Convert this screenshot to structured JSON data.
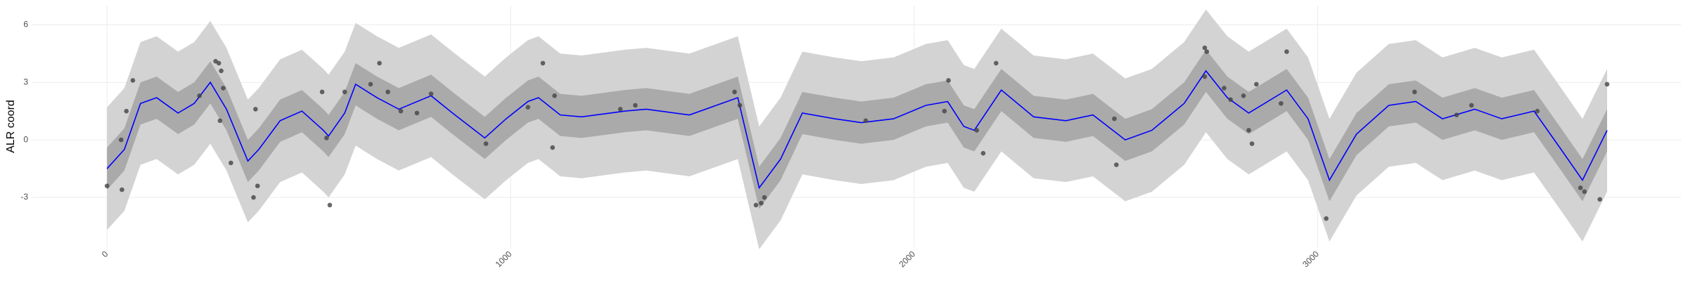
{
  "chart_data": {
    "type": "line",
    "y_label": "ALR coord",
    "xlim": [
      -185,
      3900
    ],
    "ylim": [
      -5.6,
      7
    ],
    "xticks": [
      0,
      1000,
      2000,
      3000
    ],
    "yticks": [
      -3,
      0,
      3,
      6
    ],
    "grid": true,
    "x": [
      0,
      43,
      83,
      123,
      176,
      216,
      256,
      296,
      349,
      376,
      429,
      483,
      536,
      549,
      589,
      616,
      669,
      723,
      803,
      856,
      936,
      989,
      1043,
      1069,
      1123,
      1176,
      1283,
      1336,
      1443,
      1523,
      1563,
      1616,
      1669,
      1723,
      1803,
      1869,
      1949,
      2029,
      2083,
      2123,
      2149,
      2216,
      2296,
      2376,
      2443,
      2523,
      2589,
      2669,
      2723,
      2776,
      2829,
      2923,
      2976,
      3029,
      3096,
      3176,
      3243,
      3309,
      3389,
      3456,
      3536,
      3603,
      3656,
      3717
    ],
    "bands": [
      {
        "color": "#d3d3d3",
        "upper": [
          1.7,
          2.7,
          5.1,
          5.4,
          4.6,
          5.1,
          6.2,
          4.8,
          2.1,
          2.7,
          4.2,
          4.7,
          3.7,
          3.4,
          4.6,
          6.1,
          5.4,
          4.8,
          5.5,
          4.6,
          3.3,
          4.3,
          5.2,
          5.4,
          4.5,
          4.4,
          4.7,
          4.8,
          4.5,
          5.1,
          5.4,
          0.7,
          2.2,
          4.6,
          4.3,
          4.1,
          4.3,
          5.0,
          5.2,
          3.9,
          3.7,
          5.8,
          4.4,
          4.2,
          4.5,
          3.2,
          3.7,
          5.1,
          6.8,
          5.4,
          4.6,
          5.8,
          4.3,
          1.1,
          3.5,
          5.0,
          5.2,
          4.3,
          4.8,
          4.3,
          4.7,
          2.7,
          1.1,
          3.7
        ],
        "lower": [
          -4.7,
          -3.7,
          -1.3,
          -1.0,
          -1.8,
          -1.3,
          -0.2,
          -1.6,
          -4.3,
          -3.7,
          -2.2,
          -1.7,
          -2.7,
          -3.0,
          -1.8,
          -0.3,
          -1.0,
          -1.6,
          -0.9,
          -1.8,
          -3.1,
          -2.1,
          -1.2,
          -1.0,
          -1.9,
          -2.0,
          -1.7,
          -1.6,
          -1.9,
          -1.3,
          -1.0,
          -5.7,
          -4.2,
          -1.8,
          -2.1,
          -2.3,
          -2.1,
          -1.4,
          -1.2,
          -2.5,
          -2.7,
          -0.6,
          -2.0,
          -2.2,
          -1.9,
          -3.2,
          -2.7,
          -1.3,
          0.4,
          -1.0,
          -1.8,
          -0.6,
          -2.1,
          -5.3,
          -2.9,
          -1.4,
          -1.2,
          -2.1,
          -1.6,
          -2.1,
          -1.7,
          -3.7,
          -5.3,
          -2.7
        ]
      },
      {
        "color": "#aaaaaa",
        "upper": [
          -0.4,
          0.6,
          3.0,
          3.3,
          2.5,
          3.0,
          4.1,
          2.7,
          0.0,
          0.6,
          2.1,
          2.6,
          1.6,
          1.3,
          2.5,
          4.0,
          3.3,
          2.7,
          3.4,
          2.5,
          1.2,
          2.2,
          3.1,
          3.3,
          2.4,
          2.3,
          2.6,
          2.7,
          2.4,
          3.0,
          3.3,
          -1.4,
          0.1,
          2.5,
          2.2,
          2.0,
          2.2,
          2.9,
          3.1,
          1.8,
          1.6,
          3.7,
          2.3,
          2.1,
          2.4,
          1.1,
          1.6,
          3.0,
          4.7,
          3.3,
          2.5,
          3.7,
          2.2,
          -1.0,
          1.4,
          2.9,
          3.1,
          2.2,
          2.7,
          2.2,
          2.6,
          0.6,
          -1.0,
          1.6
        ],
        "lower": [
          -2.6,
          -1.6,
          0.8,
          1.1,
          0.3,
          0.8,
          1.9,
          0.5,
          -2.2,
          -1.6,
          -0.1,
          0.4,
          -0.6,
          -0.9,
          0.3,
          1.8,
          1.1,
          0.5,
          1.2,
          0.3,
          -1.0,
          0.0,
          0.9,
          1.1,
          0.2,
          0.1,
          0.4,
          0.5,
          0.2,
          0.8,
          1.1,
          -3.6,
          -2.1,
          0.3,
          0.0,
          -0.2,
          0.0,
          0.7,
          0.9,
          -0.4,
          -0.6,
          1.5,
          0.1,
          -0.1,
          0.2,
          -1.1,
          -0.6,
          0.8,
          2.5,
          1.1,
          0.3,
          1.5,
          0.0,
          -3.2,
          -0.8,
          0.7,
          0.9,
          0.0,
          0.5,
          0.0,
          0.4,
          -1.6,
          -3.2,
          -0.6
        ]
      }
    ],
    "mean": {
      "color": "#0000ff",
      "values": [
        -1.5,
        -0.5,
        1.9,
        2.2,
        1.4,
        1.9,
        3.0,
        1.6,
        -1.1,
        -0.5,
        1.0,
        1.5,
        0.5,
        0.2,
        1.4,
        2.9,
        2.2,
        1.6,
        2.3,
        1.4,
        0.1,
        1.1,
        2.0,
        2.2,
        1.3,
        1.2,
        1.5,
        1.6,
        1.3,
        1.9,
        2.2,
        -2.5,
        -1.0,
        1.4,
        1.1,
        0.9,
        1.1,
        1.8,
        2.0,
        0.7,
        0.5,
        2.6,
        1.2,
        1.0,
        1.3,
        0.0,
        0.5,
        1.9,
        3.6,
        2.2,
        1.4,
        2.6,
        1.1,
        -2.1,
        0.3,
        1.8,
        2.0,
        1.1,
        1.6,
        1.1,
        1.5,
        -0.5,
        -2.1,
        0.5
      ]
    },
    "points": {
      "color": "#444444",
      "x": [
        0,
        35,
        37,
        48,
        64,
        229,
        269,
        277,
        283,
        288,
        280,
        307,
        368,
        363,
        373,
        533,
        544,
        552,
        589,
        653,
        675,
        696,
        728,
        768,
        803,
        939,
        1043,
        1080,
        1104,
        1109,
        1272,
        1309,
        1555,
        1568,
        1608,
        1621,
        1629,
        1880,
        2075,
        2085,
        2155,
        2171,
        2203,
        2496,
        2501,
        2720,
        2725,
        2720,
        2768,
        2784,
        2816,
        2829,
        2837,
        2848,
        2909,
        2923,
        3021,
        3240,
        3344,
        3381,
        3544,
        3651,
        3661,
        3699,
        3717
      ],
      "values": [
        -2.4,
        0.0,
        -2.6,
        1.5,
        3.1,
        2.3,
        4.1,
        4.0,
        3.6,
        2.7,
        1.0,
        -1.2,
        1.6,
        -3.0,
        -2.4,
        2.5,
        0.1,
        -3.4,
        2.5,
        2.9,
        4.0,
        2.5,
        1.5,
        1.4,
        2.4,
        -0.2,
        1.7,
        4.0,
        -0.4,
        2.3,
        1.6,
        1.8,
        2.5,
        1.8,
        -3.4,
        -3.3,
        -3.0,
        1.0,
        1.5,
        3.1,
        0.5,
        -0.7,
        4.0,
        1.1,
        -1.3,
        4.8,
        4.6,
        3.3,
        2.7,
        2.1,
        2.3,
        0.5,
        -0.2,
        2.9,
        1.9,
        4.6,
        -4.1,
        2.5,
        1.3,
        1.8,
        1.5,
        -2.5,
        -2.7,
        -3.1,
        2.9
      ]
    }
  }
}
